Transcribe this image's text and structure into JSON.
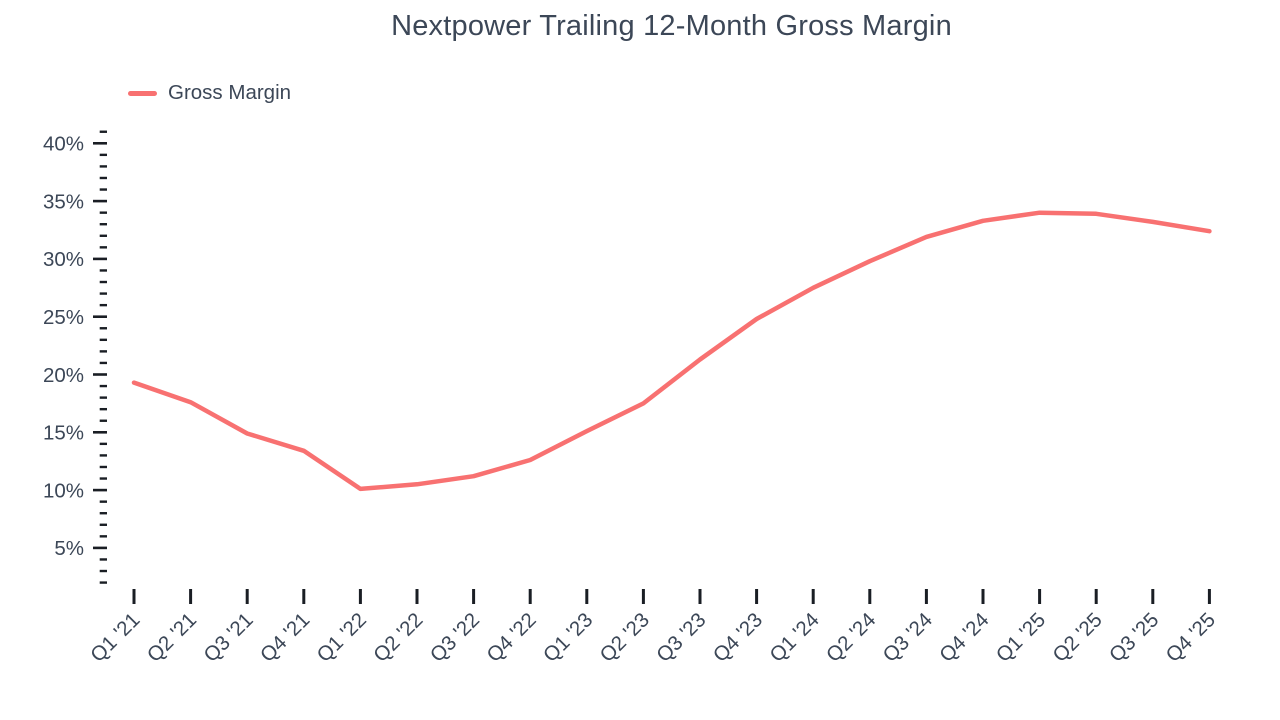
{
  "page": {
    "background_color": "#FFFFFF"
  },
  "header": {
    "title": "Nextpower Trailing 12-Month Gross Margin"
  },
  "legend": {
    "items": [
      {
        "label": "Gross Margin",
        "color": "#F87171"
      }
    ]
  },
  "chart_data": {
    "type": "line",
    "title": "Nextpower Trailing 12-Month Gross Margin",
    "categories": [
      "Q1 '21",
      "Q2 '21",
      "Q3 '21",
      "Q4 '21",
      "Q1 '22",
      "Q2 '22",
      "Q3 '22",
      "Q4 '22",
      "Q1 '23",
      "Q2 '23",
      "Q3 '23",
      "Q4 '23",
      "Q1 '24",
      "Q2 '24",
      "Q3 '24",
      "Q4 '24",
      "Q1 '25",
      "Q2 '25",
      "Q3 '25",
      "Q4 '25"
    ],
    "series": [
      {
        "name": "Gross Margin",
        "color": "#F87171",
        "values": [
          19.3,
          17.6,
          14.9,
          13.4,
          10.1,
          10.5,
          11.2,
          12.6,
          15.1,
          17.5,
          21.3,
          24.8,
          27.5,
          29.8,
          31.9,
          33.3,
          34.0,
          33.9,
          33.2,
          32.4
        ]
      }
    ],
    "xlabel": "",
    "ylabel": "",
    "ylim": [
      2,
      41
    ],
    "grid": false,
    "legend_position": "top-left",
    "y_axis": {
      "unit": "%",
      "label_min": 5,
      "label_max": 40,
      "label_step": 5,
      "minor_min": 2,
      "minor_max": 41,
      "minor_step": 1
    },
    "styles": {
      "text_color": "#3C4757",
      "tick_color": "#1A1E24",
      "line_width": 4.5
    }
  }
}
